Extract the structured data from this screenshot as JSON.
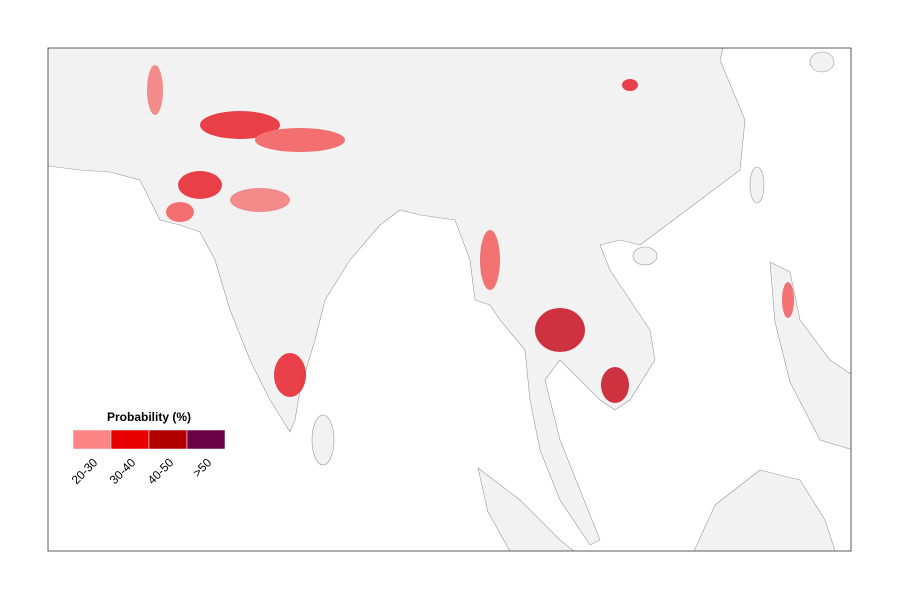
{
  "legend": {
    "title": "Probability (%)",
    "items": [
      {
        "label": "20-30",
        "color": "#fc8484"
      },
      {
        "label": "30-40",
        "color": "#e80000"
      },
      {
        "label": "40-50",
        "color": "#b00000"
      },
      {
        "label": ">50",
        "color": "#6a0046"
      }
    ]
  }
}
